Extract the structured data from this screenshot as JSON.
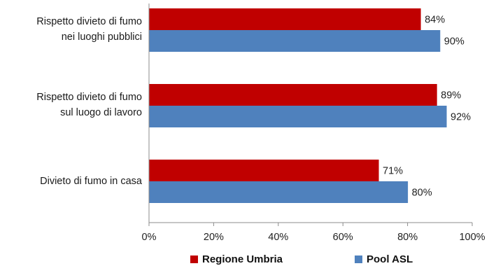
{
  "chart_data": {
    "type": "bar",
    "orientation": "horizontal",
    "categories": [
      "Rispetto divieto di fumo\nnei luoghi pubblici",
      "Rispetto divieto di fumo\nsul luogo di lavoro",
      "Divieto di fumo in casa"
    ],
    "series": [
      {
        "name": "Regione Umbria",
        "values": [
          84,
          89,
          71
        ],
        "labels": [
          "84%",
          "89%",
          "71%"
        ],
        "color": "#C00000"
      },
      {
        "name": "Pool ASL",
        "values": [
          90,
          92,
          80
        ],
        "labels": [
          "90%",
          "92%",
          "80%"
        ],
        "color": "#4F81BD"
      }
    ],
    "xlim": [
      0,
      100
    ],
    "xticks": [
      "0%",
      "20%",
      "40%",
      "60%",
      "80%",
      "100%"
    ],
    "grid": false,
    "legend_position": "bottom"
  }
}
